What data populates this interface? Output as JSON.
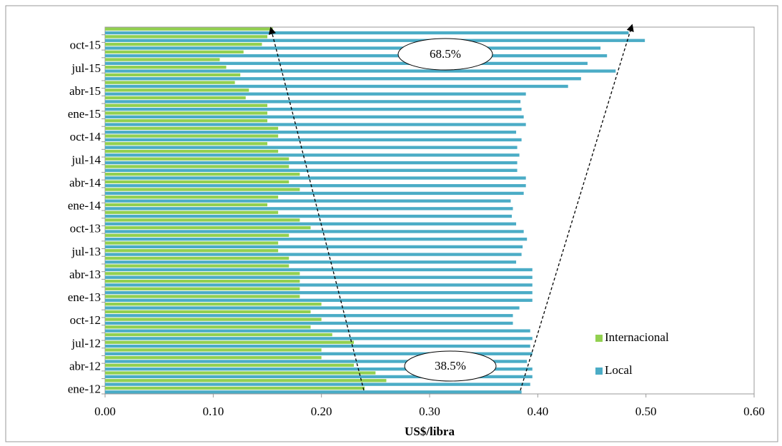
{
  "chart_data": {
    "type": "bar",
    "orientation": "horizontal",
    "x_label": "US$/libra",
    "categories": [
      "ene-12",
      null,
      null,
      "abr-12",
      null,
      null,
      "jul-12",
      null,
      null,
      "oct-12",
      null,
      null,
      "ene-13",
      null,
      null,
      "abr-13",
      null,
      null,
      "jul-13",
      null,
      null,
      "oct-13",
      null,
      null,
      "ene-14",
      null,
      null,
      "abr-14",
      null,
      null,
      "jul-14",
      null,
      null,
      "oct-14",
      null,
      null,
      "ene-15",
      null,
      null,
      "abr-15",
      null,
      null,
      "jul-15",
      null,
      null,
      "oct-15",
      null,
      null
    ],
    "series": [
      {
        "name": "Internacional",
        "color": "#92d050",
        "values": [
          0.24,
          0.26,
          0.25,
          0.23,
          0.2,
          0.2,
          0.23,
          0.21,
          0.19,
          0.2,
          0.19,
          0.2,
          0.18,
          0.18,
          0.18,
          0.18,
          0.17,
          0.17,
          0.16,
          0.16,
          0.17,
          0.19,
          0.18,
          0.16,
          0.15,
          0.16,
          0.18,
          0.17,
          0.18,
          0.17,
          0.17,
          0.16,
          0.15,
          0.16,
          0.16,
          0.15,
          0.15,
          0.15,
          0.13,
          0.133,
          0.12,
          0.125,
          0.112,
          0.106,
          0.128,
          0.145,
          0.15,
          0.155
        ]
      },
      {
        "name": "Local",
        "color": "#4bacc6",
        "values": [
          0.385,
          0.393,
          0.395,
          0.395,
          0.39,
          0.395,
          0.393,
          0.395,
          0.393,
          0.377,
          0.377,
          0.383,
          0.395,
          0.395,
          0.395,
          0.395,
          0.395,
          0.38,
          0.385,
          0.386,
          0.39,
          0.387,
          0.38,
          0.376,
          0.377,
          0.375,
          0.387,
          0.389,
          0.389,
          0.381,
          0.381,
          0.383,
          0.381,
          0.385,
          0.38,
          0.389,
          0.387,
          0.385,
          0.384,
          0.389,
          0.428,
          0.44,
          0.472,
          0.446,
          0.464,
          0.458,
          0.499,
          0.484
        ]
      }
    ],
    "xlim": [
      0,
      0.6
    ],
    "xticks": [
      {
        "value": 0,
        "label": "0.00"
      },
      {
        "value": 0.1,
        "label": "0.10"
      },
      {
        "value": 0.2,
        "label": "0.20"
      },
      {
        "value": 0.3,
        "label": "0.30"
      },
      {
        "value": 0.4,
        "label": "0.40"
      },
      {
        "value": 0.5,
        "label": "0.50"
      },
      {
        "value": 0.6,
        "label": "0.60"
      }
    ],
    "legend_position": "lower right",
    "annotations": [
      "68.5%",
      "38.5%"
    ]
  }
}
